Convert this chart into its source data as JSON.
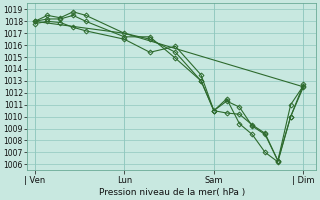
{
  "background_color": "#c8e8e0",
  "grid_color": "#90c8be",
  "line_color": "#2d6a2d",
  "marker_color": "#2d6a2d",
  "xlabel": "Pression niveau de la mer( hPa )",
  "ylim": [
    1005.5,
    1019.5
  ],
  "yticks": [
    1006,
    1007,
    1008,
    1009,
    1010,
    1011,
    1012,
    1013,
    1014,
    1015,
    1016,
    1017,
    1018,
    1019
  ],
  "xtick_labels": [
    "| Ven",
    "Lun",
    "Sam",
    "| Dim"
  ],
  "xtick_positions": [
    0,
    3.5,
    7.0,
    10.5
  ],
  "xlim": [
    -0.3,
    11.0
  ],
  "series": [
    {
      "x": [
        0.0,
        0.5,
        1.0,
        1.5,
        2.0,
        3.5,
        4.5,
        5.5,
        6.5,
        7.0,
        7.5,
        8.0,
        8.5,
        9.0,
        9.5,
        10.0,
        10.5
      ],
      "y": [
        1018.0,
        1018.5,
        1018.3,
        1018.8,
        1018.5,
        1017.0,
        1016.5,
        1015.4,
        1013.0,
        1010.5,
        1010.3,
        1010.2,
        1009.3,
        1008.6,
        1006.3,
        1010.0,
        1012.5
      ],
      "has_markers": true
    },
    {
      "x": [
        0.0,
        0.5,
        1.0,
        1.5,
        2.0,
        3.5,
        4.5,
        5.5,
        6.5,
        7.0,
        7.5,
        8.0,
        8.5,
        9.0,
        9.5,
        10.0,
        10.5
      ],
      "y": [
        1018.0,
        1018.2,
        1018.2,
        1018.5,
        1018.0,
        1016.7,
        1016.7,
        1014.9,
        1013.0,
        1010.5,
        1011.3,
        1010.8,
        1009.2,
        1008.5,
        1006.3,
        1011.0,
        1012.6
      ],
      "has_markers": true
    },
    {
      "x": [
        0.0,
        0.5,
        1.0,
        1.5,
        2.0,
        3.5,
        4.5,
        5.5,
        6.5,
        7.0,
        7.5,
        8.0,
        8.5,
        9.0,
        9.5,
        10.0,
        10.5
      ],
      "y": [
        1017.8,
        1018.0,
        1017.9,
        1017.5,
        1017.2,
        1016.5,
        1015.4,
        1015.9,
        1013.5,
        1010.5,
        1011.5,
        1009.4,
        1008.5,
        1007.0,
        1006.2,
        1010.0,
        1012.7
      ],
      "has_markers": true
    },
    {
      "x": [
        0.0,
        3.5,
        10.5
      ],
      "y": [
        1018.0,
        1017.0,
        1012.5
      ],
      "has_markers": false
    }
  ]
}
